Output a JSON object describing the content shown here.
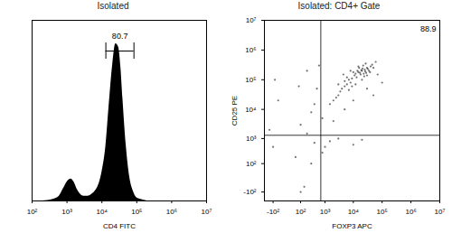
{
  "chart_data": [
    {
      "type": "area",
      "title": "Isolated",
      "x_label": "CD4 FITC",
      "x": [
        200,
        400,
        600,
        800,
        1000,
        1300,
        1600,
        2000,
        2500,
        3000,
        4000,
        5000,
        6300,
        8000,
        10000,
        13000,
        16000,
        20000,
        25000,
        30000,
        35000,
        40000,
        50000,
        63000,
        80000,
        100000,
        130000,
        200000
      ],
      "values": [
        0,
        1,
        3,
        8,
        12,
        14,
        12,
        7,
        4,
        3,
        3,
        4,
        6,
        10,
        18,
        35,
        60,
        85,
        100,
        98,
        85,
        65,
        35,
        15,
        6,
        2,
        1,
        0
      ],
      "xlim": [
        100,
        10000000
      ],
      "xticks": [
        {
          "value": 100,
          "label": "10²"
        },
        {
          "value": 1000,
          "label": "10³"
        },
        {
          "value": 10000,
          "label": "10⁴"
        },
        {
          "value": 100000,
          "label": "10⁵"
        },
        {
          "value": 1000000,
          "label": "10⁶"
        },
        {
          "value": 10000000,
          "label": "10⁷"
        }
      ],
      "ylim": [
        0,
        115
      ],
      "yticks": [],
      "log": "x",
      "tick_labels": "x",
      "color": "#000000",
      "gate": {
        "range": [
          13000,
          83000
        ],
        "label": "80.7"
      }
    },
    {
      "type": "scatter",
      "title": "Isolated: CD4+ Gate",
      "x_label": "FOXP3 APC",
      "y_label": "CD25 PE",
      "x": [
        20000,
        15000,
        25000,
        30000,
        18000,
        22000,
        12000,
        28000,
        35000,
        16000,
        24000,
        19000,
        40000,
        13000,
        21000,
        26000,
        17000,
        32000,
        14000,
        23000,
        11000,
        45000,
        9000,
        27000,
        38000,
        20000,
        10000,
        50000,
        15000,
        30000,
        8000,
        6000,
        7000,
        5000,
        4000,
        9000,
        3500,
        6000,
        5000,
        3000,
        4500,
        2500,
        7000,
        12000,
        2000,
        3000,
        8000,
        60000,
        70000,
        1500,
        300,
        100,
        -50,
        500,
        200,
        -100,
        50,
        150,
        400,
        800,
        1500,
        3000,
        10000,
        20000,
        -80,
        200,
        600,
        1000,
        2000,
        5000,
        10000,
        400,
        800,
        30000,
        50000,
        100000,
        300,
        -150,
        80,
        100
      ],
      "y": [
        200000,
        180000,
        220000,
        250000,
        150000,
        300000,
        160000,
        170000,
        200000,
        250000,
        130000,
        210000,
        280000,
        120000,
        240000,
        190000,
        170000,
        230000,
        200000,
        160000,
        140000,
        320000,
        110000,
        350000,
        180000,
        100000,
        180000,
        250000,
        280000,
        140000,
        80000,
        70000,
        100000,
        60000,
        50000,
        60000,
        40000,
        120000,
        90000,
        30000,
        150000,
        25000,
        45000,
        70000,
        20000,
        70000,
        200000,
        400000,
        150000,
        15000,
        8000,
        3000,
        20000,
        50000,
        1500,
        500,
        200,
        -50,
        700,
        300,
        800,
        1000,
        600,
        900,
        100000,
        200000,
        300000,
        500,
        4000,
        10000,
        20000,
        15000,
        5000,
        50000,
        30000,
        80000,
        100,
        2000,
        60000,
        -100
      ],
      "xlim": [
        -250,
        10000000
      ],
      "ylim": [
        -250,
        10000000
      ],
      "xticks": [
        {
          "value": -100,
          "label": "-10²"
        },
        {
          "value": 100,
          "label": "10²"
        },
        {
          "value": 1000,
          "label": "10³"
        },
        {
          "value": 10000,
          "label": "10⁴"
        },
        {
          "value": 100000,
          "label": "10⁵"
        },
        {
          "value": 1000000,
          "label": "10⁶"
        },
        {
          "value": 10000000,
          "label": "10⁷"
        }
      ],
      "yticks": [
        {
          "value": -100,
          "label": "-10²"
        },
        {
          "value": 100,
          "label": "10²"
        },
        {
          "value": 1000,
          "label": "10³"
        },
        {
          "value": 10000,
          "label": "10⁴"
        },
        {
          "value": 100000,
          "label": "10⁵"
        },
        {
          "value": 1000000,
          "label": "10⁶"
        },
        {
          "value": 10000000,
          "label": "10⁷"
        }
      ],
      "log": true,
      "color": "#000000",
      "quadrant": {
        "x": 700,
        "y": 1300,
        "label": "88.9"
      }
    }
  ]
}
